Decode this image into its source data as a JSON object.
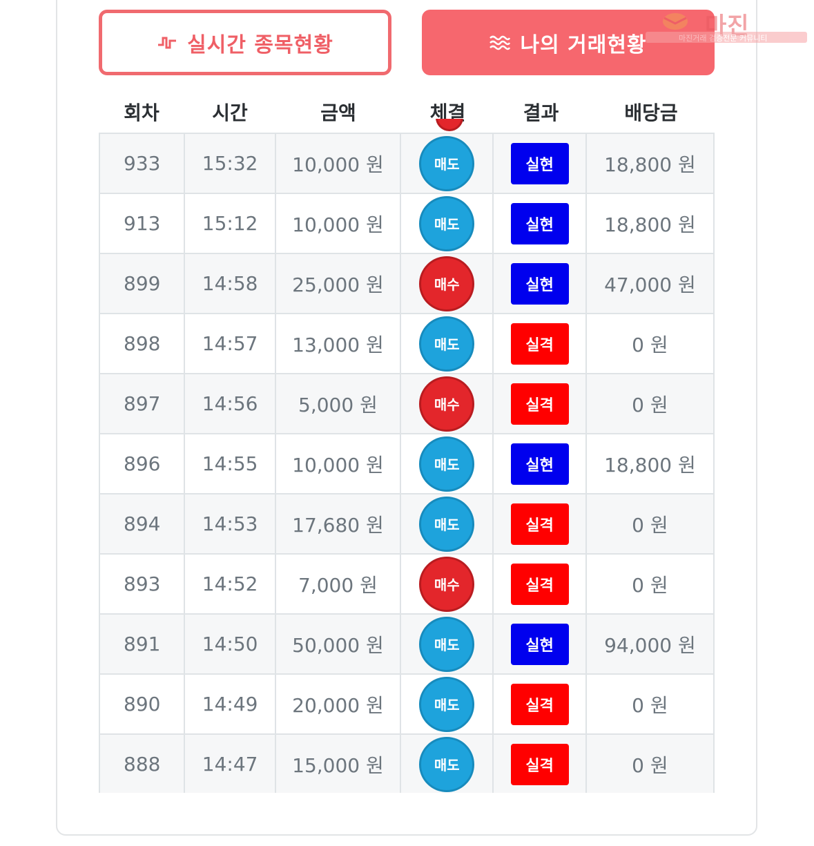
{
  "tabs": {
    "realtime": {
      "label": "실시간 종목현황",
      "icon": "pulse-icon"
    },
    "mine": {
      "label": "나의 거래현황",
      "icon": "waves-icon"
    }
  },
  "watermark": {
    "title": "마진",
    "subtitle": "마진거래 검증전문 커뮤니티"
  },
  "table": {
    "headers": [
      "회차",
      "시간",
      "금액",
      "체결",
      "결과",
      "배당금"
    ],
    "rows": [
      {
        "round": "933",
        "time": "15:32",
        "amount": "10,000 원",
        "trade": "매도",
        "result": "실현",
        "payout": "18,800 원"
      },
      {
        "round": "913",
        "time": "15:12",
        "amount": "10,000 원",
        "trade": "매도",
        "result": "실현",
        "payout": "18,800 원"
      },
      {
        "round": "899",
        "time": "14:58",
        "amount": "25,000 원",
        "trade": "매수",
        "result": "실현",
        "payout": "47,000 원"
      },
      {
        "round": "898",
        "time": "14:57",
        "amount": "13,000 원",
        "trade": "매도",
        "result": "실격",
        "payout": "0 원"
      },
      {
        "round": "897",
        "time": "14:56",
        "amount": "5,000 원",
        "trade": "매수",
        "result": "실격",
        "payout": "0 원"
      },
      {
        "round": "896",
        "time": "14:55",
        "amount": "10,000 원",
        "trade": "매도",
        "result": "실현",
        "payout": "18,800 원"
      },
      {
        "round": "894",
        "time": "14:53",
        "amount": "17,680 원",
        "trade": "매도",
        "result": "실격",
        "payout": "0 원"
      },
      {
        "round": "893",
        "time": "14:52",
        "amount": "7,000 원",
        "trade": "매수",
        "result": "실격",
        "payout": "0 원"
      },
      {
        "round": "891",
        "time": "14:50",
        "amount": "50,000 원",
        "trade": "매도",
        "result": "실현",
        "payout": "94,000 원"
      },
      {
        "round": "890",
        "time": "14:49",
        "amount": "20,000 원",
        "trade": "매도",
        "result": "실격",
        "payout": "0 원"
      },
      {
        "round": "888",
        "time": "14:47",
        "amount": "15,000 원",
        "trade": "매도",
        "result": "실격",
        "payout": "0 원"
      }
    ]
  },
  "colors": {
    "accent": "#f6676e",
    "sell": "#1ea3dc",
    "buy": "#e3262b",
    "realized": "#0000ee",
    "failed": "#ff0000"
  }
}
